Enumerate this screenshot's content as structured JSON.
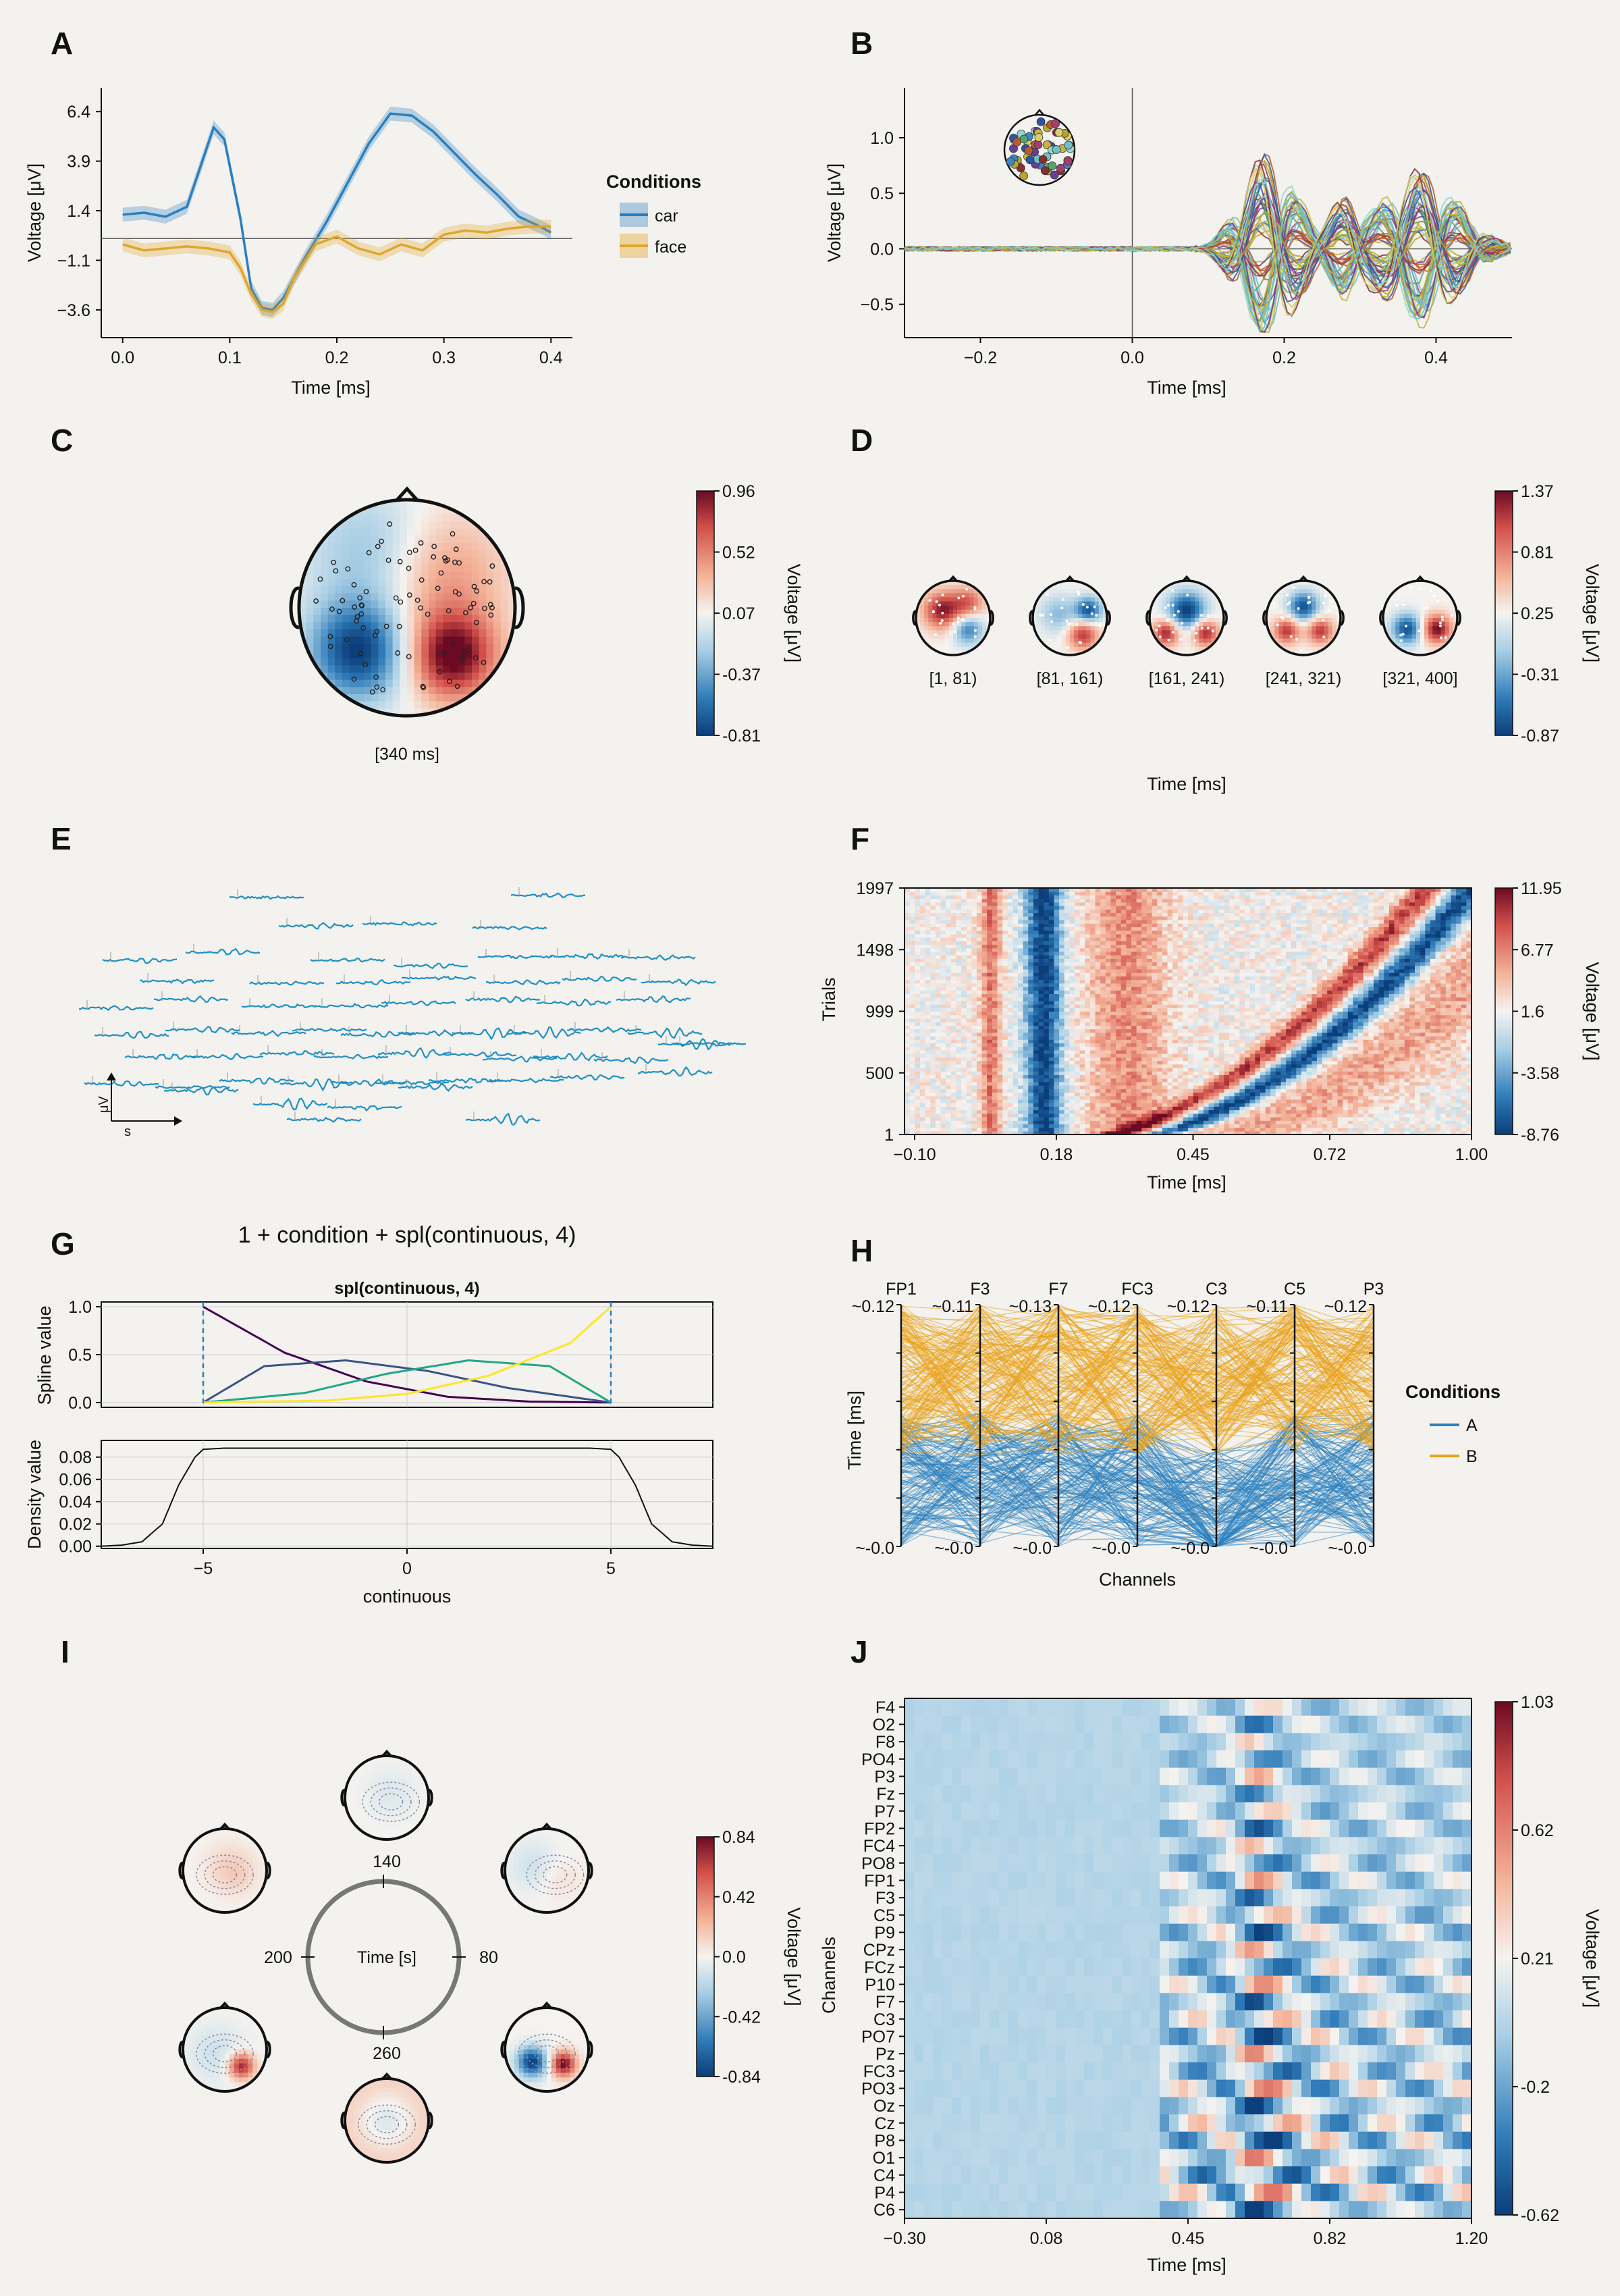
{
  "panels": {
    "A": "A",
    "B": "B",
    "C": "C",
    "D": "D",
    "E": "E",
    "F": "F",
    "G": "G",
    "H": "H",
    "I": "I",
    "J": "J"
  },
  "colors": {
    "car": "#2a7fbf",
    "face": "#e1a52b",
    "A": "#2a7fbf",
    "B": "#e9a21c"
  },
  "chart_data": [
    {
      "id": "A",
      "type": "line",
      "xlabel": "Time [ms]",
      "ylabel": "Voltage [μV]",
      "xlim": [
        -0.02,
        0.42
      ],
      "ylim": [
        -5.0,
        7.6
      ],
      "xticks": [
        0.0,
        0.1,
        0.2,
        0.3,
        0.4
      ],
      "xtick_labels": [
        "0.0",
        "0.1",
        "0.2",
        "0.3",
        "0.4"
      ],
      "yticks": [
        -3.6,
        -1.1,
        1.4,
        3.9,
        6.4
      ],
      "ytick_labels": [
        "−3.6",
        "−1.1",
        "1.4",
        "3.9",
        "6.4"
      ],
      "legend": {
        "title": "Conditions",
        "placement": "right"
      },
      "series": [
        {
          "name": "car",
          "x": [
            0,
            0.02,
            0.04,
            0.06,
            0.075,
            0.085,
            0.095,
            0.11,
            0.12,
            0.13,
            0.14,
            0.15,
            0.17,
            0.19,
            0.21,
            0.23,
            0.25,
            0.27,
            0.29,
            0.31,
            0.33,
            0.35,
            0.37,
            0.39,
            0.4
          ],
          "y": [
            1.2,
            1.3,
            1.1,
            1.6,
            4.0,
            5.6,
            5.0,
            1.0,
            -2.5,
            -3.5,
            -3.6,
            -3.0,
            -1.0,
            0.8,
            2.8,
            4.8,
            6.3,
            6.2,
            5.4,
            4.3,
            3.2,
            2.2,
            1.1,
            0.6,
            0.3
          ]
        },
        {
          "name": "face",
          "x": [
            0,
            0.02,
            0.04,
            0.06,
            0.08,
            0.1,
            0.11,
            0.12,
            0.13,
            0.14,
            0.15,
            0.16,
            0.18,
            0.2,
            0.22,
            0.24,
            0.26,
            0.28,
            0.3,
            0.32,
            0.34,
            0.36,
            0.38,
            0.4
          ],
          "y": [
            -0.3,
            -0.6,
            -0.5,
            -0.4,
            -0.5,
            -0.7,
            -1.5,
            -2.8,
            -3.6,
            -3.7,
            -3.3,
            -2.0,
            -0.3,
            0.1,
            -0.5,
            -0.8,
            -0.3,
            -0.6,
            0.2,
            0.4,
            0.3,
            0.5,
            0.6,
            0.6
          ]
        }
      ]
    },
    {
      "id": "B",
      "type": "line",
      "xlabel": "Time [ms]",
      "ylabel": "Voltage [μV]",
      "xlim": [
        -0.3,
        0.5
      ],
      "ylim": [
        -0.8,
        1.45
      ],
      "xticks": [
        -0.2,
        0.0,
        0.2,
        0.4
      ],
      "xtick_labels": [
        "−0.2",
        "0.0",
        "0.2",
        "0.4"
      ],
      "yticks": [
        -0.5,
        0.0,
        0.5,
        1.0
      ],
      "ytick_labels": [
        "−0.5",
        "0.0",
        "0.5",
        "1.0"
      ],
      "channels": 64
    },
    {
      "id": "C",
      "type": "heatmap",
      "subtype": "topoplot",
      "label": "[340 ms]",
      "colorbar": {
        "label": "Voltage [μV]",
        "ticks": [
          "0.96",
          "0.52",
          "0.07",
          "-0.37",
          "-0.81"
        ]
      }
    },
    {
      "id": "D",
      "type": "heatmap",
      "subtype": "topoplot-series",
      "labels": [
        "[1, 81)",
        "[81, 161)",
        "[161, 241)",
        "[241, 321)",
        "[321, 400]"
      ],
      "xlabel": "Time [ms]",
      "colorbar": {
        "label": "Voltage [μV]",
        "ticks": [
          "1.37",
          "0.81",
          "0.25",
          "-0.31",
          "-0.87"
        ]
      }
    },
    {
      "id": "E",
      "type": "line",
      "subtype": "butterfly-topo",
      "xlabel": "s",
      "ylabel": "μV"
    },
    {
      "id": "F",
      "type": "heatmap",
      "subtype": "erp-image",
      "xlabel": "Time [ms]",
      "ylabel": "Trials",
      "xticks": [
        -0.1,
        0.18,
        0.45,
        0.72,
        1.0
      ],
      "xtick_labels": [
        "−0.10",
        "0.18",
        "0.45",
        "0.72",
        "1.00"
      ],
      "yticks": [
        1,
        500,
        999,
        1498,
        1997
      ],
      "ytick_labels": [
        "1",
        "500",
        "999",
        "1498",
        "1997"
      ],
      "xlim": [
        -0.12,
        1.0
      ],
      "ylim": [
        1,
        1997
      ],
      "colorbar": {
        "label": "Voltage [μV]",
        "ticks": [
          "11.95",
          "6.77",
          "1.6",
          "-3.58",
          "-8.76"
        ]
      }
    },
    {
      "id": "G",
      "type": "line",
      "title": "1 + condition + spl(continuous, 4)",
      "subtitle": "spl(continuous, 4)",
      "top": {
        "ylabel": "Spline value",
        "ylim": [
          -0.05,
          1.05
        ],
        "yticks": [
          "0.0",
          "0.5",
          "1.0"
        ],
        "knots": [
          -5,
          5
        ],
        "series": [
          {
            "color": "#440154",
            "x": [
              -5,
              -3,
              -1,
              1,
              3,
              5
            ],
            "y": [
              1.0,
              0.52,
              0.22,
              0.06,
              0.01,
              0.0
            ]
          },
          {
            "color": "#3b528b",
            "x": [
              -5,
              -3.5,
              -1.5,
              0.5,
              2.5,
              5
            ],
            "y": [
              0.0,
              0.38,
              0.44,
              0.33,
              0.15,
              0.0
            ]
          },
          {
            "color": "#21a784",
            "x": [
              -5,
              -2.5,
              -0.5,
              1.5,
              3.5,
              5
            ],
            "y": [
              0.0,
              0.1,
              0.3,
              0.44,
              0.38,
              0.0
            ]
          },
          {
            "color": "#fde725",
            "x": [
              -5,
              -2,
              0,
              2,
              4,
              5
            ],
            "y": [
              0.0,
              0.02,
              0.09,
              0.28,
              0.62,
              1.0
            ]
          }
        ]
      },
      "bottom": {
        "ylabel": "Density value",
        "xlabel": "continuous",
        "ylim": [
          -0.002,
          0.095
        ],
        "yticks": [
          "0.00",
          "0.02",
          "0.04",
          "0.06",
          "0.08"
        ],
        "xticks": [
          -5,
          0,
          5
        ],
        "xtick_labels": [
          "−5",
          "0",
          "5"
        ],
        "x": [
          -7.5,
          -7,
          -6.5,
          -6,
          -5.6,
          -5.2,
          -5,
          -4.5,
          -3,
          0,
          3,
          4.5,
          5,
          5.2,
          5.6,
          6,
          6.5,
          7,
          7.5
        ],
        "y": [
          0.0,
          0.001,
          0.004,
          0.02,
          0.055,
          0.08,
          0.087,
          0.088,
          0.088,
          0.088,
          0.088,
          0.088,
          0.087,
          0.08,
          0.055,
          0.02,
          0.004,
          0.001,
          0.0
        ]
      }
    },
    {
      "id": "H",
      "type": "line",
      "subtype": "parallel-coordinates",
      "xlabel": "Channels",
      "ylabel": "Time [ms]",
      "axes": [
        "FP1",
        "F3",
        "F7",
        "FC3",
        "C3",
        "C5",
        "P3"
      ],
      "top_labels": [
        "~0.12",
        "~0.11",
        "~0.13",
        "~0.12",
        "~0.12",
        "~0.11",
        "~0.12"
      ],
      "bottom_labels": [
        "~-0.0",
        "~-0.0",
        "~-0.0",
        "~-0.0",
        "~-0.0",
        "~-0.0",
        "~-0.0"
      ],
      "legend": {
        "title": "Conditions",
        "entries": [
          "A",
          "B"
        ]
      }
    },
    {
      "id": "I",
      "type": "heatmap",
      "subtype": "circular-topoplot",
      "center_label": "Time [s]",
      "angle_labels": [
        "140",
        "80",
        "260",
        "200"
      ],
      "colorbar": {
        "label": "Voltage [μV]",
        "ticks": [
          "0.84",
          "0.42",
          "0.0",
          "-0.42",
          "-0.84"
        ]
      }
    },
    {
      "id": "J",
      "type": "heatmap",
      "xlabel": "Time [ms]",
      "ylabel": "Channels",
      "xtick_labels": [
        "−0.30",
        "0.08",
        "0.45",
        "0.82",
        "1.20"
      ],
      "rows": [
        "F4",
        "O2",
        "F8",
        "PO4",
        "P3",
        "Fz",
        "P7",
        "FP2",
        "FC4",
        "PO8",
        "FP1",
        "F3",
        "C5",
        "P9",
        "CPz",
        "FCz",
        "P10",
        "F7",
        "C3",
        "PO7",
        "Pz",
        "FC3",
        "PO3",
        "Oz",
        "Cz",
        "P8",
        "O1",
        "C4",
        "P4",
        "C6"
      ],
      "colorbar": {
        "label": "Voltage [μV]",
        "ticks": [
          "1.03",
          "0.62",
          "0.21",
          "-0.2",
          "-0.62"
        ]
      }
    }
  ]
}
